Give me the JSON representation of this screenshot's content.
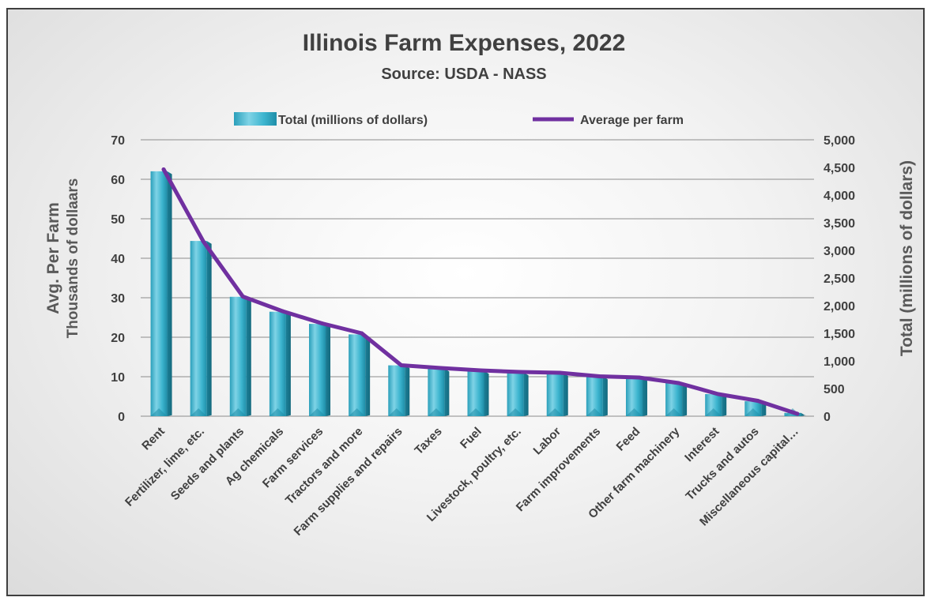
{
  "chart_data": {
    "type": "bar",
    "title": "Illinois Farm Expenses, 2022",
    "subtitle": "Source: USDA - NASS",
    "categories": [
      "Rent",
      "Fertilizer, lime, etc.",
      "Seeds and plants",
      "Ag chemicals",
      "Farm services",
      "Tractors and more",
      "Farm supplies and repairs",
      "Taxes",
      "Fuel",
      "Livestock, poultry, etc.",
      "Labor",
      "Farm improvements",
      "Feed",
      "Other farm machinery",
      "Interest",
      "Trucks and autos",
      "Miscellaneous capital…"
    ],
    "series": [
      {
        "name": "Total (millions of dollars)",
        "type": "bar",
        "axis": "right",
        "values": [
          4430,
          3170,
          2160,
          1890,
          1670,
          1480,
          920,
          860,
          820,
          790,
          780,
          720,
          690,
          600,
          400,
          270,
          60
        ]
      },
      {
        "name": "Average per farm",
        "type": "line",
        "axis": "left",
        "values": [
          62.5,
          44.3,
          30.3,
          26.6,
          23.5,
          21.0,
          12.9,
          12.2,
          11.6,
          11.2,
          11.0,
          10.1,
          9.8,
          8.4,
          5.6,
          3.9,
          0.6
        ]
      }
    ],
    "y_left": {
      "label_line1": "Avg. Per Farm",
      "label_line2": "Thousands of dollaars",
      "ylim": [
        0,
        70
      ],
      "ticks": [
        "0",
        "10",
        "20",
        "30",
        "40",
        "50",
        "60",
        "70"
      ]
    },
    "y_right": {
      "label": "Total (millions of dollars)",
      "ylim": [
        0,
        5000
      ],
      "ticks": [
        "0",
        "500",
        "1,000",
        "1,500",
        "2,000",
        "2,500",
        "3,000",
        "3,500",
        "4,000",
        "4,500",
        "5,000"
      ]
    },
    "grid": true,
    "legend_position": "top",
    "colors": {
      "bar_light": "#7fd3e6",
      "bar_mid": "#3db5cf",
      "bar_dark": "#1f8ea8",
      "bar_top": "#2aa3bf",
      "line": "#7030a0",
      "text": "#404040"
    }
  }
}
